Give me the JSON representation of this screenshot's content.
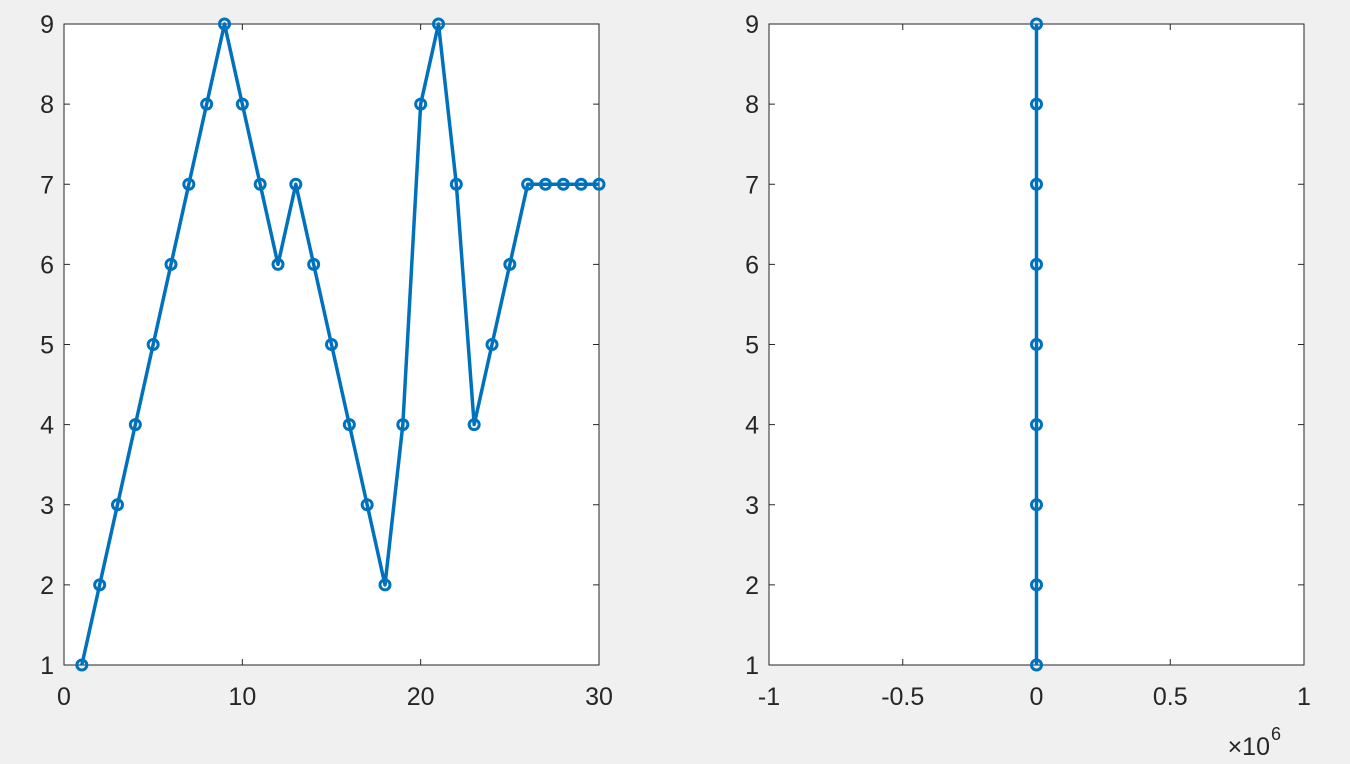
{
  "chart_data": [
    {
      "type": "line",
      "x": [
        1,
        2,
        3,
        4,
        5,
        6,
        7,
        8,
        9,
        10,
        11,
        12,
        13,
        14,
        15,
        16,
        17,
        18,
        19,
        20,
        21,
        22,
        23,
        24,
        25,
        26,
        27,
        28,
        29,
        30
      ],
      "series": [
        {
          "color": "#0072bd",
          "values": [
            1,
            2,
            3,
            4,
            5,
            6,
            7,
            8,
            9,
            8,
            7,
            6,
            7,
            6,
            5,
            4,
            3,
            2,
            4,
            8,
            9,
            7,
            4,
            5,
            6,
            7,
            7,
            7,
            7,
            7
          ]
        }
      ],
      "xlim": [
        0,
        30
      ],
      "xticks": [
        0,
        10,
        20,
        30
      ],
      "ylim": [
        1,
        9
      ],
      "yticks": [
        1,
        2,
        3,
        4,
        5,
        6,
        7,
        8,
        9
      ],
      "markers": "circle"
    },
    {
      "type": "line",
      "x": [
        0,
        0,
        0,
        0,
        0,
        0,
        0,
        0,
        0
      ],
      "series": [
        {
          "color": "#0072bd",
          "values": [
            1,
            2,
            3,
            4,
            5,
            6,
            7,
            8,
            9
          ]
        }
      ],
      "xlim": [
        -1000000,
        1000000
      ],
      "xticks": [
        {
          "value": -1000000,
          "label": "-1"
        },
        {
          "value": -500000,
          "label": "-0.5"
        },
        0,
        {
          "value": 500000,
          "label": "0.5"
        },
        {
          "value": 1000000,
          "label": "1"
        }
      ],
      "x_multiplier": {
        "base": "×10",
        "exponent": "6"
      },
      "ylim": [
        1,
        9
      ],
      "yticks": [
        1,
        2,
        3,
        4,
        5,
        6,
        7,
        8,
        9
      ],
      "markers": "circle"
    }
  ]
}
